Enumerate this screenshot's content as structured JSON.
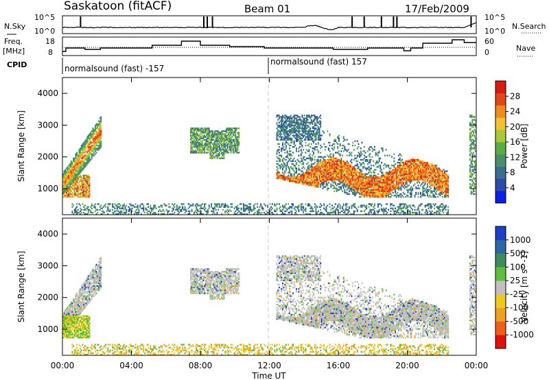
{
  "header": {
    "station": "Saskatoon (fitACF)",
    "beam": "Beam 01",
    "date": "17/Feb/2009"
  },
  "strip_labels": {
    "nsky": "N.Sky",
    "nsky_top": "10^5",
    "nsky_bottom": "10^0",
    "nsearch": "N.Search",
    "nsearch_top": "10^5",
    "nsearch_bottom": "10^0",
    "freq": "Freq.",
    "freq_unit": "[MHz]",
    "freq_ticks": [
      "18",
      "8"
    ],
    "nave": "Nave",
    "nave_ticks": [
      "60",
      "0"
    ],
    "cpid": "CPID"
  },
  "cpid_segments": [
    {
      "label": "normalsound (fast) -157",
      "start_hour": 0
    },
    {
      "label": "normalsound (fast) 157",
      "start_hour": 12
    }
  ],
  "colors": {
    "power": [
      "#0b1fe6",
      "#2b4ba9",
      "#3a6f91",
      "#4a8f6a",
      "#59ad45",
      "#a8c83a",
      "#f2c230",
      "#f28a1e",
      "#e5451a",
      "#d91c10"
    ],
    "velocity_pos": [
      "#1d3fc8",
      "#2f66a6",
      "#3f8d5d",
      "#5dbf3a"
    ],
    "velocity_gray": "#c0c0c0",
    "velocity_neg": [
      "#f0c81e",
      "#f0a020",
      "#ee5f1a",
      "#e01010"
    ],
    "gray_dash": "#c8c8c8"
  },
  "power_colorbar": {
    "label": "Power [dB]",
    "ticks": [
      "28",
      "24",
      "20",
      "16",
      "12",
      "8",
      "4"
    ]
  },
  "velocity_colorbar": {
    "label": "Velocity [m s^-1]",
    "ticks": [
      "1000",
      "500",
      "100",
      "25",
      "-25",
      "-100",
      "-500",
      "-1000"
    ]
  },
  "chart_data": [
    {
      "type": "heatmap",
      "title": "Power",
      "ylabel": "Slant Range [km]",
      "xlabel": "Time UT",
      "x_ticks": [
        "00:00",
        "04:00",
        "08:00",
        "12:00",
        "16:00",
        "20:00",
        "00:00"
      ],
      "y_ticks": [
        "1000",
        "2000",
        "3000",
        "4000"
      ],
      "xlim_hours": [
        0,
        24
      ],
      "ylim_km": [
        180,
        4500
      ],
      "echo_regions": [
        {
          "t0": 0.0,
          "t1": 2.2,
          "r_low": 700,
          "r_high": 2900,
          "peak_db": 28
        },
        {
          "t0": 7.3,
          "t1": 10.3,
          "r_low": 1800,
          "r_high": 2900,
          "peak_db": 20
        },
        {
          "t0": 12.4,
          "t1": 22.4,
          "r_low": 700,
          "r_high": 3300,
          "peak_db": 28
        },
        {
          "t0": 23.6,
          "t1": 24.0,
          "r_low": 700,
          "r_high": 3300,
          "peak_db": 12
        }
      ]
    },
    {
      "type": "heatmap",
      "title": "Velocity",
      "ylabel": "Slant Range [km]",
      "xlabel": "Time UT",
      "x_ticks": [
        "00:00",
        "04:00",
        "08:00",
        "12:00",
        "16:00",
        "20:00",
        "00:00"
      ],
      "y_ticks": [
        "1000",
        "2000",
        "3000",
        "4000"
      ],
      "xlim_hours": [
        0,
        24
      ],
      "ylim_km": [
        180,
        4500
      ]
    }
  ]
}
